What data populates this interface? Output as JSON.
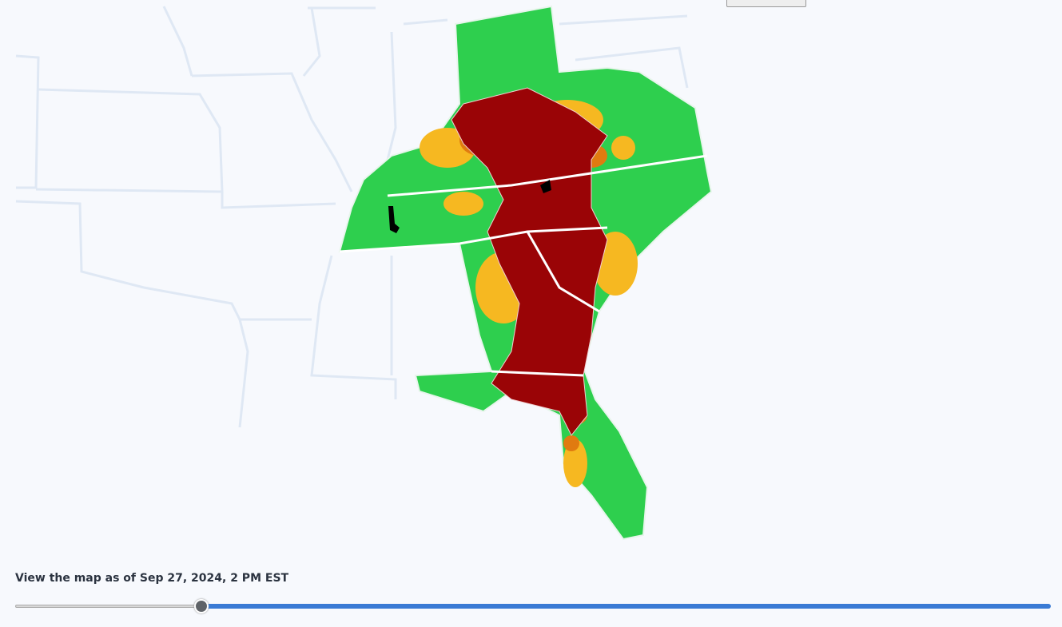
{
  "slider": {
    "label": "View the map as of Sep 27, 2024, 2 PM EST"
  }
}
